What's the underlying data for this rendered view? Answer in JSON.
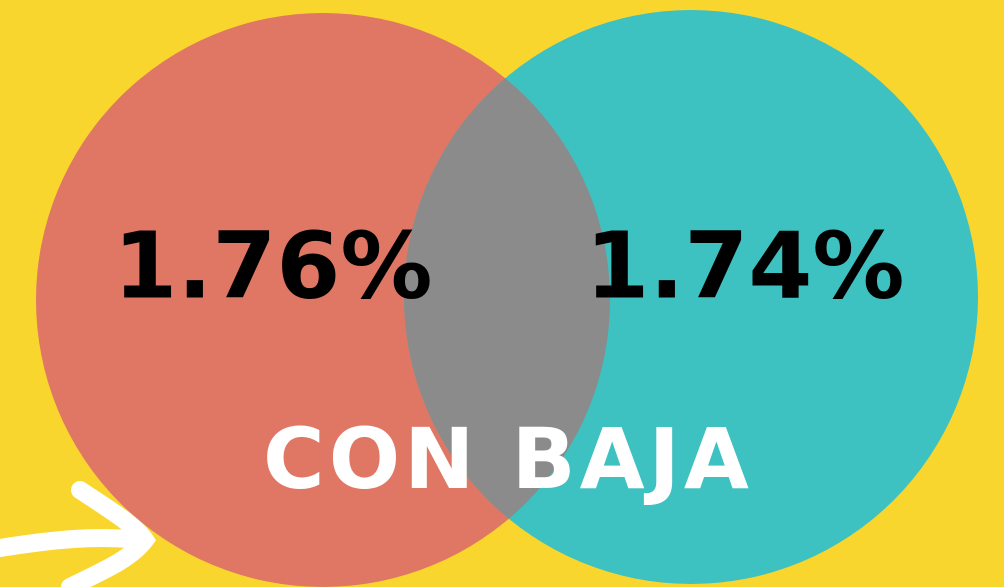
{
  "circles": [
    {
      "label": "1.76%"
    },
    {
      "label": "1.74%"
    }
  ],
  "caption": "CON BAJA"
}
